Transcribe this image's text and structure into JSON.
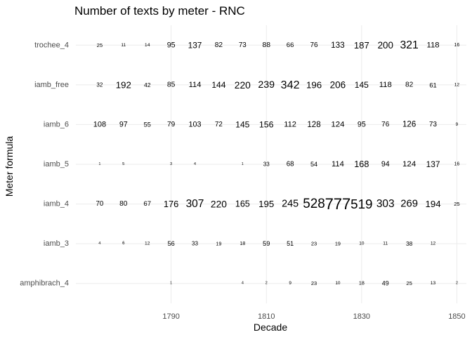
{
  "chart_data": {
    "type": "table",
    "title": "Number of texts by meter - RNC",
    "xlabel": "Decade",
    "ylabel": "Meter formula",
    "x_ticks": [
      1790,
      1810,
      1830,
      1850
    ],
    "xlim": [
      1770,
      1852
    ],
    "categories": [
      "amphibrach_4",
      "iamb_3",
      "iamb_4",
      "iamb_5",
      "iamb_6",
      "iamb_free",
      "trochee_4"
    ],
    "x": [
      1775,
      1780,
      1785,
      1790,
      1795,
      1800,
      1805,
      1810,
      1815,
      1820,
      1825,
      1830,
      1835,
      1840,
      1845,
      1850
    ],
    "grid": true,
    "series": [
      {
        "name": "trochee_4",
        "values": [
          25,
          11,
          14,
          95,
          137,
          82,
          73,
          88,
          66,
          76,
          133,
          187,
          200,
          321,
          118,
          16
        ]
      },
      {
        "name": "iamb_free",
        "values": [
          32,
          192,
          42,
          85,
          114,
          144,
          220,
          239,
          342,
          196,
          206,
          145,
          118,
          82,
          61,
          12
        ]
      },
      {
        "name": "iamb_6",
        "values": [
          108,
          97,
          55,
          79,
          103,
          72,
          145,
          156,
          112,
          128,
          124,
          95,
          76,
          126,
          73,
          9
        ]
      },
      {
        "name": "iamb_5",
        "values": [
          1,
          5,
          null,
          3,
          4,
          null,
          1,
          33,
          68,
          54,
          114,
          168,
          94,
          124,
          137,
          16
        ]
      },
      {
        "name": "iamb_4",
        "values": [
          70,
          80,
          67,
          176,
          307,
          220,
          165,
          195,
          245,
          528,
          777,
          519,
          303,
          269,
          194,
          25
        ]
      },
      {
        "name": "iamb_3",
        "values": [
          4,
          6,
          12,
          56,
          33,
          19,
          18,
          59,
          51,
          23,
          19,
          10,
          11,
          38,
          12,
          null
        ]
      },
      {
        "name": "amphibrach_4",
        "values": [
          null,
          null,
          null,
          1,
          null,
          null,
          4,
          2,
          9,
          23,
          10,
          18,
          49,
          25,
          13,
          2
        ]
      }
    ]
  }
}
